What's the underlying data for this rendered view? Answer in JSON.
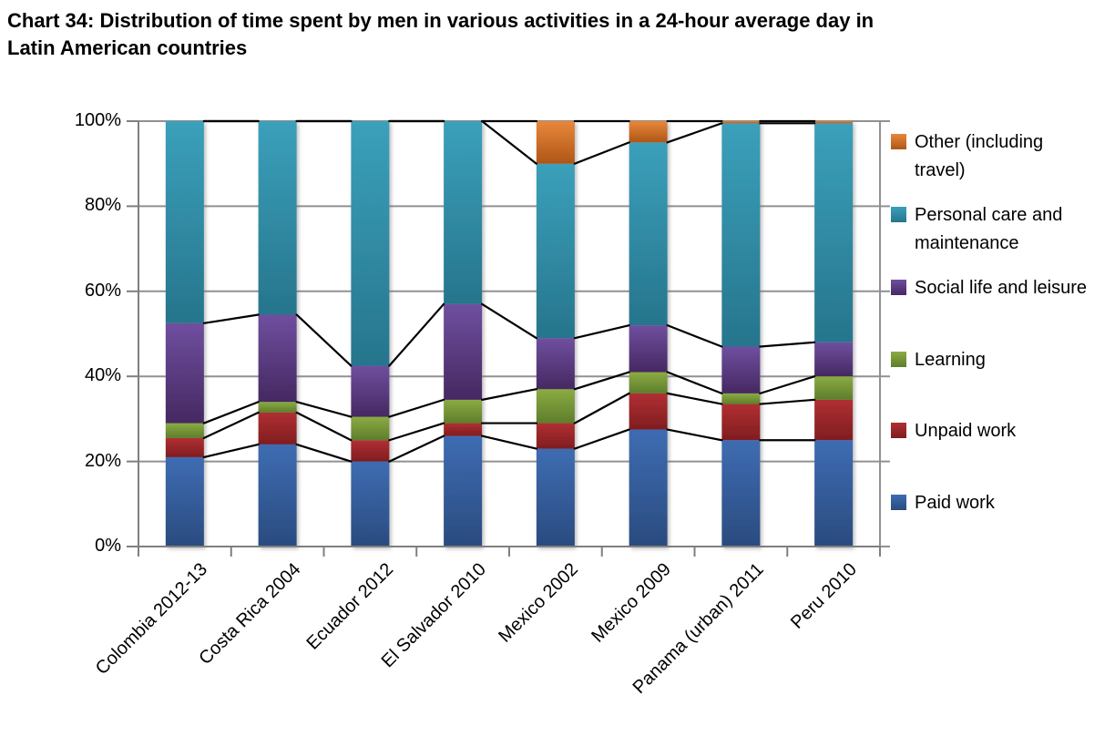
{
  "title": {
    "lines": [
      "Chart 34: Distribution of time spent by men in various activities in a 24-hour average day in",
      "Latin American countries"
    ]
  },
  "y_axis": {
    "ticks": [
      {
        "label": "0%",
        "value": 0
      },
      {
        "label": "20%",
        "value": 20
      },
      {
        "label": "40%",
        "value": 40
      },
      {
        "label": "60%",
        "value": 60
      },
      {
        "label": "80%",
        "value": 80
      },
      {
        "label": "100%",
        "value": 100
      }
    ]
  },
  "chart_data": {
    "type": "bar",
    "subtype": "stacked-100-percent",
    "title": "Chart 34: Distribution of time spent by men in various activities in a 24-hour average day in Latin American countries",
    "xlabel": "",
    "ylabel": "",
    "ylim": [
      0,
      100
    ],
    "y_tick_labels": [
      "0%",
      "20%",
      "40%",
      "60%",
      "80%",
      "100%"
    ],
    "grid": true,
    "series_lines": true,
    "legend_position": "right",
    "categories": [
      "Colombia 2012-13",
      "Costa Rica 2004",
      "Ecuador 2012",
      "El Salvador 2010",
      "Mexico 2002",
      "Mexico 2009",
      "Panama (urban) 2011",
      "Peru 2010"
    ],
    "series": [
      {
        "name": "Paid work",
        "values": [
          21,
          24,
          20,
          26,
          23,
          27.5,
          25,
          25
        ],
        "color_top": "#3E6CB2",
        "color_bottom": "#2A4B7F"
      },
      {
        "name": "Unpaid work",
        "values": [
          4.5,
          7.5,
          5,
          3,
          6,
          8.5,
          8.5,
          9.5
        ],
        "color_top": "#B02F32",
        "color_bottom": "#7F1D20"
      },
      {
        "name": "Learning",
        "values": [
          3.5,
          2.5,
          5.5,
          5.5,
          8,
          5,
          2.5,
          5.5
        ],
        "color_top": "#8BAB43",
        "color_bottom": "#5E7D2B"
      },
      {
        "name": "Social life and leisure",
        "values": [
          23.5,
          20.5,
          12,
          22.5,
          12,
          11,
          11,
          8
        ],
        "color_top": "#6F4F9F",
        "color_bottom": "#452861"
      },
      {
        "name": "Personal care and maintenance",
        "values": [
          47.5,
          45.5,
          57.5,
          43,
          41,
          43,
          52.5,
          51.5
        ],
        "color_top": "#3BA0BB",
        "color_bottom": "#26758C"
      },
      {
        "name": "Other (including travel)",
        "values": [
          0,
          0,
          0,
          0,
          10,
          5,
          0.5,
          0.5
        ],
        "color_top": "#E8873B",
        "color_bottom": "#AE5617"
      }
    ]
  },
  "style_colors": {
    "gridline": "#919191",
    "axis": "#7F7F7F",
    "series_line": "#000000",
    "text": "#000000",
    "background": "#FFFFFF"
  }
}
